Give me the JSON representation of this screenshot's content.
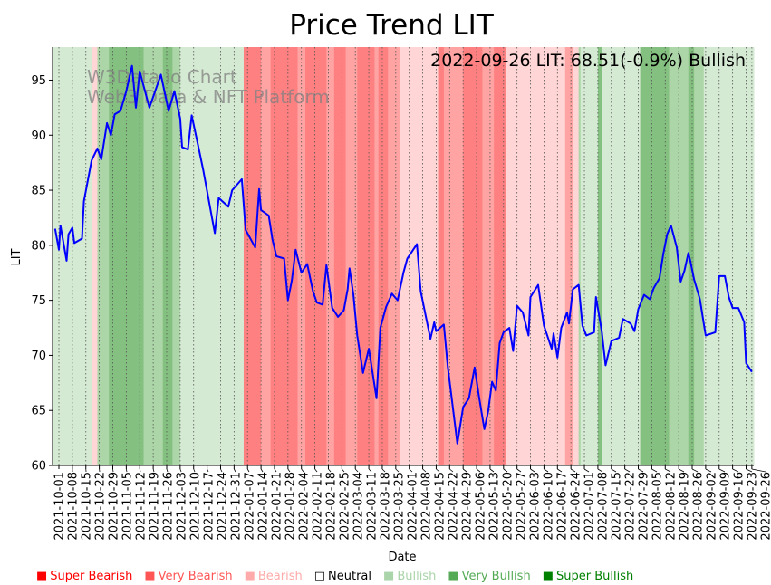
{
  "chart_data": {
    "type": "line",
    "title": "Price Trend LIT",
    "xlabel": "Date",
    "ylabel": "LIT",
    "x_origin_date": "2021-10-01",
    "xlim_days": [
      -3.3,
      361
    ],
    "ylim": [
      60,
      98
    ],
    "y_ticks": [
      60,
      65,
      70,
      75,
      80,
      85,
      90,
      95
    ],
    "x_ticks": [
      {
        "day": 0,
        "label": "2021-10-01"
      },
      {
        "day": 7,
        "label": "2021-10-08"
      },
      {
        "day": 14,
        "label": "2021-10-15"
      },
      {
        "day": 21,
        "label": "2021-10-22"
      },
      {
        "day": 28,
        "label": "2021-10-29"
      },
      {
        "day": 35,
        "label": "2021-11-05"
      },
      {
        "day": 42,
        "label": "2021-11-12"
      },
      {
        "day": 49,
        "label": "2021-11-19"
      },
      {
        "day": 56,
        "label": "2021-11-26"
      },
      {
        "day": 63,
        "label": "2021-12-03"
      },
      {
        "day": 70,
        "label": "2021-12-10"
      },
      {
        "day": 77,
        "label": "2021-12-17"
      },
      {
        "day": 84,
        "label": "2021-12-24"
      },
      {
        "day": 91,
        "label": "2021-12-31"
      },
      {
        "day": 98,
        "label": "2022-01-07"
      },
      {
        "day": 105,
        "label": "2022-01-14"
      },
      {
        "day": 112,
        "label": "2022-01-21"
      },
      {
        "day": 119,
        "label": "2022-01-28"
      },
      {
        "day": 126,
        "label": "2022-02-04"
      },
      {
        "day": 133,
        "label": "2022-02-11"
      },
      {
        "day": 140,
        "label": "2022-02-18"
      },
      {
        "day": 147,
        "label": "2022-02-25"
      },
      {
        "day": 154,
        "label": "2022-03-04"
      },
      {
        "day": 161,
        "label": "2022-03-11"
      },
      {
        "day": 168,
        "label": "2022-03-18"
      },
      {
        "day": 175,
        "label": "2022-03-25"
      },
      {
        "day": 182,
        "label": "2022-04-01"
      },
      {
        "day": 189,
        "label": "2022-04-08"
      },
      {
        "day": 196,
        "label": "2022-04-15"
      },
      {
        "day": 203,
        "label": "2022-04-22"
      },
      {
        "day": 210,
        "label": "2022-04-29"
      },
      {
        "day": 217,
        "label": "2022-05-06"
      },
      {
        "day": 224,
        "label": "2022-05-13"
      },
      {
        "day": 231,
        "label": "2022-05-20"
      },
      {
        "day": 238,
        "label": "2022-05-27"
      },
      {
        "day": 245,
        "label": "2022-06-03"
      },
      {
        "day": 252,
        "label": "2022-06-10"
      },
      {
        "day": 259,
        "label": "2022-06-17"
      },
      {
        "day": 266,
        "label": "2022-06-24"
      },
      {
        "day": 273,
        "label": "2022-07-01"
      },
      {
        "day": 280,
        "label": "2022-07-08"
      },
      {
        "day": 287,
        "label": "2022-07-15"
      },
      {
        "day": 294,
        "label": "2022-07-22"
      },
      {
        "day": 301,
        "label": "2022-07-29"
      },
      {
        "day": 308,
        "label": "2022-08-05"
      },
      {
        "day": 315,
        "label": "2022-08-12"
      },
      {
        "day": 322,
        "label": "2022-08-19"
      },
      {
        "day": 329,
        "label": "2022-08-26"
      },
      {
        "day": 336,
        "label": "2022-09-02"
      },
      {
        "day": 343,
        "label": "2022-09-09"
      },
      {
        "day": 350,
        "label": "2022-09-16"
      },
      {
        "day": 357,
        "label": "2022-09-23"
      },
      {
        "day": 360,
        "label": "2022-09-26"
      }
    ],
    "series": [
      {
        "name": "LIT",
        "color": "#0000ff",
        "days": [
          -2,
          0,
          0.8,
          4,
          5,
          7,
          8,
          12,
          13,
          17,
          20,
          22,
          25,
          27,
          29,
          32,
          35,
          38,
          40,
          42,
          47,
          53,
          57,
          60,
          63,
          64,
          67,
          69,
          73,
          75,
          81,
          83,
          88,
          90,
          95,
          97,
          102,
          104,
          105,
          109,
          111,
          113,
          117,
          119,
          121,
          123,
          126,
          129,
          132,
          134,
          137,
          139,
          142,
          145,
          148,
          150,
          151,
          153,
          155,
          158,
          161,
          165,
          167,
          170,
          173,
          176,
          179,
          181,
          186,
          188,
          193,
          195,
          196,
          200,
          202,
          207,
          210,
          213,
          216,
          218,
          221,
          223,
          225,
          227,
          229,
          231,
          234,
          236,
          238,
          241,
          244,
          245,
          249,
          252,
          256,
          257,
          259,
          261,
          264,
          265,
          267,
          270,
          272,
          274,
          278,
          279,
          282,
          284,
          287,
          291,
          293,
          297,
          299,
          301,
          304,
          307,
          309,
          312,
          314,
          316,
          318,
          321,
          323,
          325,
          327,
          328,
          330,
          333,
          336,
          341,
          343,
          346,
          348,
          350,
          353,
          356,
          357,
          360
        ],
        "values": [
          81.5,
          79.6,
          81.8,
          78.6,
          81,
          81.6,
          80.2,
          80.6,
          84,
          87.7,
          88.8,
          87.8,
          91.1,
          90,
          91.9,
          92.2,
          94,
          96.3,
          92.5,
          95.8,
          92.5,
          95.5,
          92.2,
          94,
          91.5,
          88.9,
          88.7,
          91.8,
          88.5,
          86.8,
          81.1,
          84.3,
          83.5,
          85,
          86,
          81.4,
          79.8,
          85.1,
          83.2,
          82.7,
          80.5,
          79,
          78.8,
          75,
          76.8,
          79.6,
          77.5,
          78.3,
          75.8,
          74.8,
          74.6,
          78.2,
          74.3,
          73.5,
          74.1,
          76,
          77.9,
          75.5,
          71.8,
          68.4,
          70.6,
          66.1,
          72.5,
          74.4,
          75.6,
          75,
          77.5,
          78.8,
          80.1,
          75.8,
          71.5,
          73,
          72.2,
          72.8,
          69,
          62,
          65.3,
          66.1,
          68.9,
          66.5,
          63.3,
          64.9,
          67.6,
          66.8,
          71.1,
          72.1,
          72.5,
          70.4,
          74.5,
          73.9,
          71.8,
          75.3,
          76.4,
          72.7,
          70.6,
          72,
          69.8,
          72.5,
          73.9,
          72.9,
          76,
          76.4,
          72.7,
          71.8,
          72.1,
          75.3,
          72.2,
          69.1,
          71.3,
          71.6,
          73.3,
          72.9,
          72.2,
          74.2,
          75.5,
          75.1,
          76.1,
          77,
          79.2,
          81,
          81.8,
          79.8,
          76.7,
          77.7,
          79.3,
          78.6,
          76.9,
          75.1,
          71.8,
          72.1,
          77.2,
          77.2,
          75.3,
          74.3,
          74.3,
          73,
          69.3,
          68.5
        ]
      }
    ],
    "sentiment_bands": [
      [
        -3.3,
        17,
        "bullish"
      ],
      [
        17,
        20,
        "bearish"
      ],
      [
        20,
        26,
        "very_bullish"
      ],
      [
        26,
        44,
        "super_bullish"
      ],
      [
        44,
        54,
        "very_bullish"
      ],
      [
        54,
        59,
        "super_bullish"
      ],
      [
        59,
        63,
        "very_bullish"
      ],
      [
        63,
        96,
        "bullish"
      ],
      [
        96,
        105,
        "super_bearish"
      ],
      [
        105,
        110,
        "very_bearish"
      ],
      [
        110,
        124,
        "super_bearish"
      ],
      [
        124,
        128,
        "very_bearish"
      ],
      [
        128,
        139,
        "super_bearish"
      ],
      [
        139,
        143,
        "very_bearish"
      ],
      [
        143,
        149,
        "super_bearish"
      ],
      [
        149,
        155,
        "very_bearish"
      ],
      [
        155,
        164,
        "super_bearish"
      ],
      [
        164,
        166,
        "very_bearish"
      ],
      [
        166,
        171,
        "super_bearish"
      ],
      [
        171,
        177,
        "very_bearish"
      ],
      [
        177,
        197,
        "bearish"
      ],
      [
        197,
        200,
        "super_bearish"
      ],
      [
        200,
        210,
        "very_bearish"
      ],
      [
        210,
        220,
        "super_bearish"
      ],
      [
        220,
        226,
        "very_bearish"
      ],
      [
        226,
        232,
        "super_bearish"
      ],
      [
        232,
        263,
        "bearish"
      ],
      [
        263,
        267,
        "very_bearish"
      ],
      [
        267,
        270,
        "bearish"
      ],
      [
        270,
        271,
        "very_bullish"
      ],
      [
        271,
        280,
        "bullish"
      ],
      [
        280,
        282,
        "super_bullish"
      ],
      [
        282,
        302,
        "bullish"
      ],
      [
        302,
        317,
        "super_bullish"
      ],
      [
        317,
        327,
        "very_bullish"
      ],
      [
        327,
        330,
        "super_bullish"
      ],
      [
        330,
        335,
        "very_bullish"
      ],
      [
        335,
        361,
        "bullish"
      ]
    ],
    "band_colors": {
      "super_bearish": "#ff8080",
      "very_bearish": "#ffa3a3",
      "bearish": "#ffd5d5",
      "bullish": "#d5ead3",
      "very_bullish": "#add6a8",
      "super_bullish": "#84c07f"
    },
    "annotation": "2022-09-26 LIT: 68.51(-0.9%) Bullish",
    "watermark": [
      "W3Data.io Chart",
      "Web3 Data & NFT Platform"
    ],
    "legend": [
      {
        "label": "Super Bearish",
        "color": "#ff0000",
        "marker": "■"
      },
      {
        "label": "Very Bearish",
        "color": "#ff5555",
        "marker": "■"
      },
      {
        "label": "Bearish",
        "color": "#ffaaaa",
        "marker": "■"
      },
      {
        "label": "Neutral",
        "color": "#000000",
        "marker": "□"
      },
      {
        "label": "Bullish",
        "color": "#aad4aa",
        "marker": "■"
      },
      {
        "label": "Very Bullish",
        "color": "#55aa55",
        "marker": "■"
      },
      {
        "label": "Super Bullish",
        "color": "#008000",
        "marker": "■"
      }
    ]
  }
}
